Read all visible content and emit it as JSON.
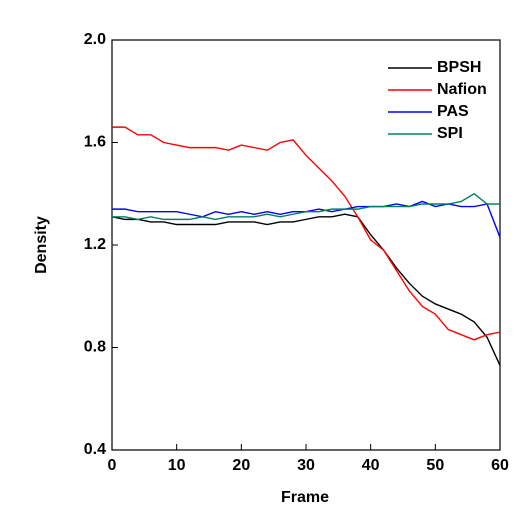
{
  "chart_data": {
    "type": "line",
    "x_label": "Frame",
    "y_label": "Density",
    "x": [
      0,
      2,
      4,
      6,
      8,
      10,
      12,
      14,
      16,
      18,
      20,
      22,
      24,
      26,
      28,
      30,
      32,
      34,
      36,
      38,
      40,
      42,
      44,
      46,
      48,
      50,
      52,
      54,
      56,
      58,
      60
    ],
    "series": [
      {
        "name": "BPSH",
        "color": "#000000",
        "values": [
          1.31,
          1.3,
          1.3,
          1.29,
          1.29,
          1.28,
          1.28,
          1.28,
          1.28,
          1.29,
          1.29,
          1.29,
          1.28,
          1.29,
          1.29,
          1.3,
          1.31,
          1.31,
          1.32,
          1.31,
          1.24,
          1.18,
          1.11,
          1.05,
          1.0,
          0.97,
          0.95,
          0.93,
          0.9,
          0.84,
          0.73
        ]
      },
      {
        "name": "Nafion",
        "color": "#ff0000",
        "values": [
          1.66,
          1.66,
          1.63,
          1.63,
          1.6,
          1.59,
          1.58,
          1.58,
          1.58,
          1.57,
          1.59,
          1.58,
          1.57,
          1.6,
          1.61,
          1.55,
          1.5,
          1.45,
          1.39,
          1.31,
          1.22,
          1.18,
          1.1,
          1.02,
          0.96,
          0.93,
          0.87,
          0.85,
          0.83,
          0.85,
          0.86
        ]
      },
      {
        "name": "PAS",
        "color": "#0000ff",
        "values": [
          1.34,
          1.34,
          1.33,
          1.33,
          1.33,
          1.33,
          1.32,
          1.31,
          1.33,
          1.32,
          1.33,
          1.32,
          1.33,
          1.32,
          1.33,
          1.33,
          1.34,
          1.33,
          1.34,
          1.35,
          1.35,
          1.35,
          1.36,
          1.35,
          1.37,
          1.35,
          1.36,
          1.35,
          1.35,
          1.36,
          1.23
        ]
      },
      {
        "name": "SPI",
        "color": "#008060",
        "values": [
          1.31,
          1.31,
          1.3,
          1.31,
          1.3,
          1.3,
          1.3,
          1.31,
          1.3,
          1.31,
          1.31,
          1.31,
          1.32,
          1.31,
          1.32,
          1.33,
          1.33,
          1.34,
          1.34,
          1.34,
          1.35,
          1.35,
          1.35,
          1.35,
          1.36,
          1.36,
          1.36,
          1.37,
          1.4,
          1.36,
          1.36
        ]
      }
    ],
    "xlim": [
      0,
      60
    ],
    "xticks": [
      0,
      10,
      20,
      30,
      40,
      50,
      60
    ],
    "ylim": [
      0.4,
      2.0
    ],
    "yticks": [
      0.4,
      0.8,
      1.2,
      1.6,
      {
        "value": 2.0,
        "label": "2.0"
      }
    ],
    "legend": "upper right"
  }
}
